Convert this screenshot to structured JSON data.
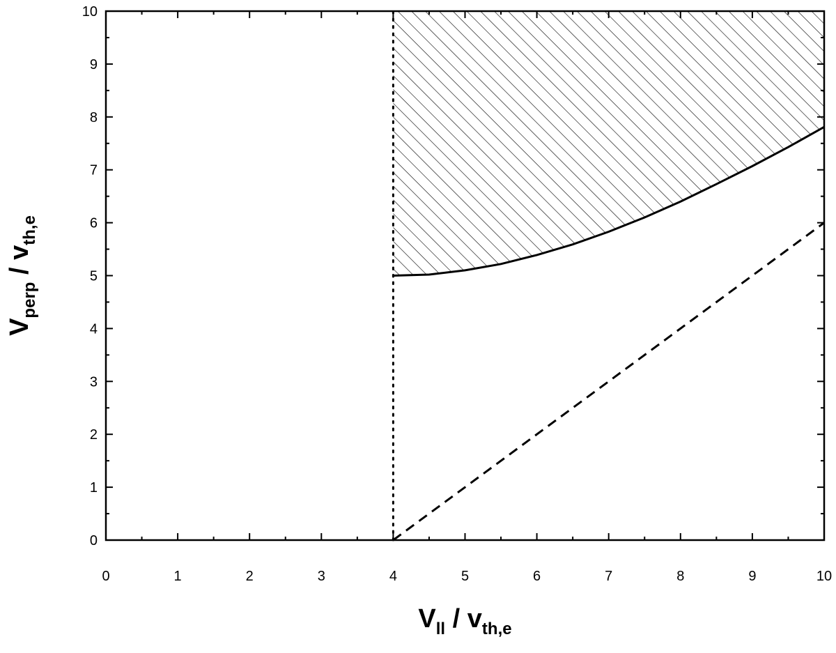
{
  "chart_data": {
    "type": "line",
    "xlabel": [
      {
        "text": "V"
      },
      {
        "text": "ll",
        "baseline": "sub"
      },
      {
        "text": " / v"
      },
      {
        "text": "th,e",
        "baseline": "sub"
      }
    ],
    "ylabel": [
      {
        "text": "V"
      },
      {
        "text": "perp",
        "baseline": "sub"
      },
      {
        "text": " / v"
      },
      {
        "text": "th,e",
        "baseline": "sub"
      }
    ],
    "xlim": [
      0,
      10
    ],
    "ylim": [
      0,
      10
    ],
    "xticks": [
      0,
      1,
      2,
      3,
      4,
      5,
      6,
      7,
      8,
      9,
      10
    ],
    "yticks": [
      0,
      1,
      2,
      3,
      4,
      5,
      6,
      7,
      8,
      9,
      10
    ],
    "series": [
      {
        "style": "solid",
        "color": "#000000",
        "x": [
          4,
          4.5,
          5,
          5.5,
          6,
          6.5,
          7,
          7.5,
          8,
          8.5,
          9,
          9.5,
          10
        ],
        "values": [
          5,
          5.02,
          5.1,
          5.22,
          5.39,
          5.59,
          5.83,
          6.1,
          6.4,
          6.73,
          7.07,
          7.43,
          7.81
        ]
      },
      {
        "style": "dashed",
        "color": "#000000",
        "x": [
          4,
          10
        ],
        "values": [
          0,
          6
        ]
      },
      {
        "style": "dotted",
        "color": "#000000",
        "x": [
          4,
          4
        ],
        "values": [
          0,
          10
        ]
      }
    ],
    "hatch_above_series": 0
  }
}
